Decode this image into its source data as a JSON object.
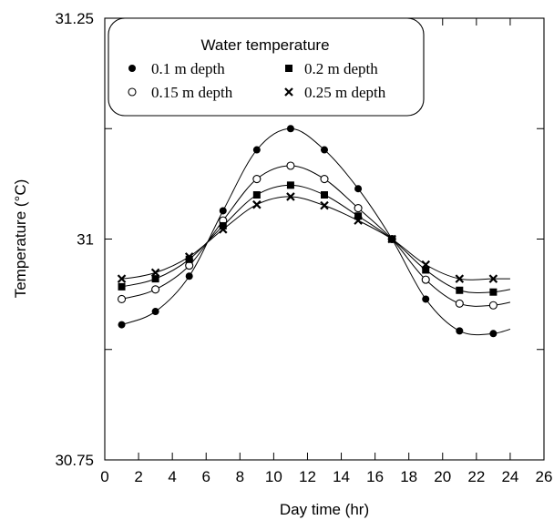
{
  "chart_data": {
    "type": "line",
    "xlabel": "Day time (hr)",
    "ylabel": "Temperature (°C)",
    "xlim": [
      0,
      26
    ],
    "ylim": [
      30.75,
      31.25
    ],
    "x_ticks": [
      0,
      2,
      4,
      6,
      8,
      10,
      12,
      14,
      16,
      18,
      20,
      22,
      24,
      26
    ],
    "y_tick_labels": [
      "31.25",
      "31",
      "30.75"
    ],
    "y_tick_values": [
      31.25,
      31.0,
      30.75
    ],
    "y_minor_ticks": [
      31.125,
      30.875
    ],
    "grid": false,
    "legend": {
      "title": "Water temperature",
      "position": "top-left",
      "columns": 2
    },
    "x": [
      1,
      3,
      5,
      7,
      9,
      11,
      13,
      15,
      17,
      19,
      21,
      23
    ],
    "series": [
      {
        "name": "0.1 m depth",
        "marker": "filled-circle",
        "values": [
          30.903,
          30.918,
          30.958,
          31.032,
          31.101,
          31.125,
          31.101,
          31.057,
          31.0,
          30.932,
          30.896,
          30.893
        ]
      },
      {
        "name": "0.15 m depth",
        "marker": "open-circle",
        "values": [
          30.932,
          30.943,
          30.97,
          31.021,
          31.068,
          31.083,
          31.068,
          31.035,
          31.0,
          30.954,
          30.927,
          30.925
        ]
      },
      {
        "name": "0.2 m depth",
        "marker": "filled-square",
        "values": [
          30.946,
          30.955,
          30.977,
          31.015,
          31.05,
          31.061,
          31.05,
          31.026,
          31.0,
          30.965,
          30.942,
          30.94
        ]
      },
      {
        "name": "0.25 m depth",
        "marker": "x-cross",
        "values": [
          30.955,
          30.962,
          30.98,
          31.011,
          31.039,
          31.048,
          31.038,
          31.021,
          31.0,
          30.971,
          30.955,
          30.955
        ]
      }
    ]
  }
}
